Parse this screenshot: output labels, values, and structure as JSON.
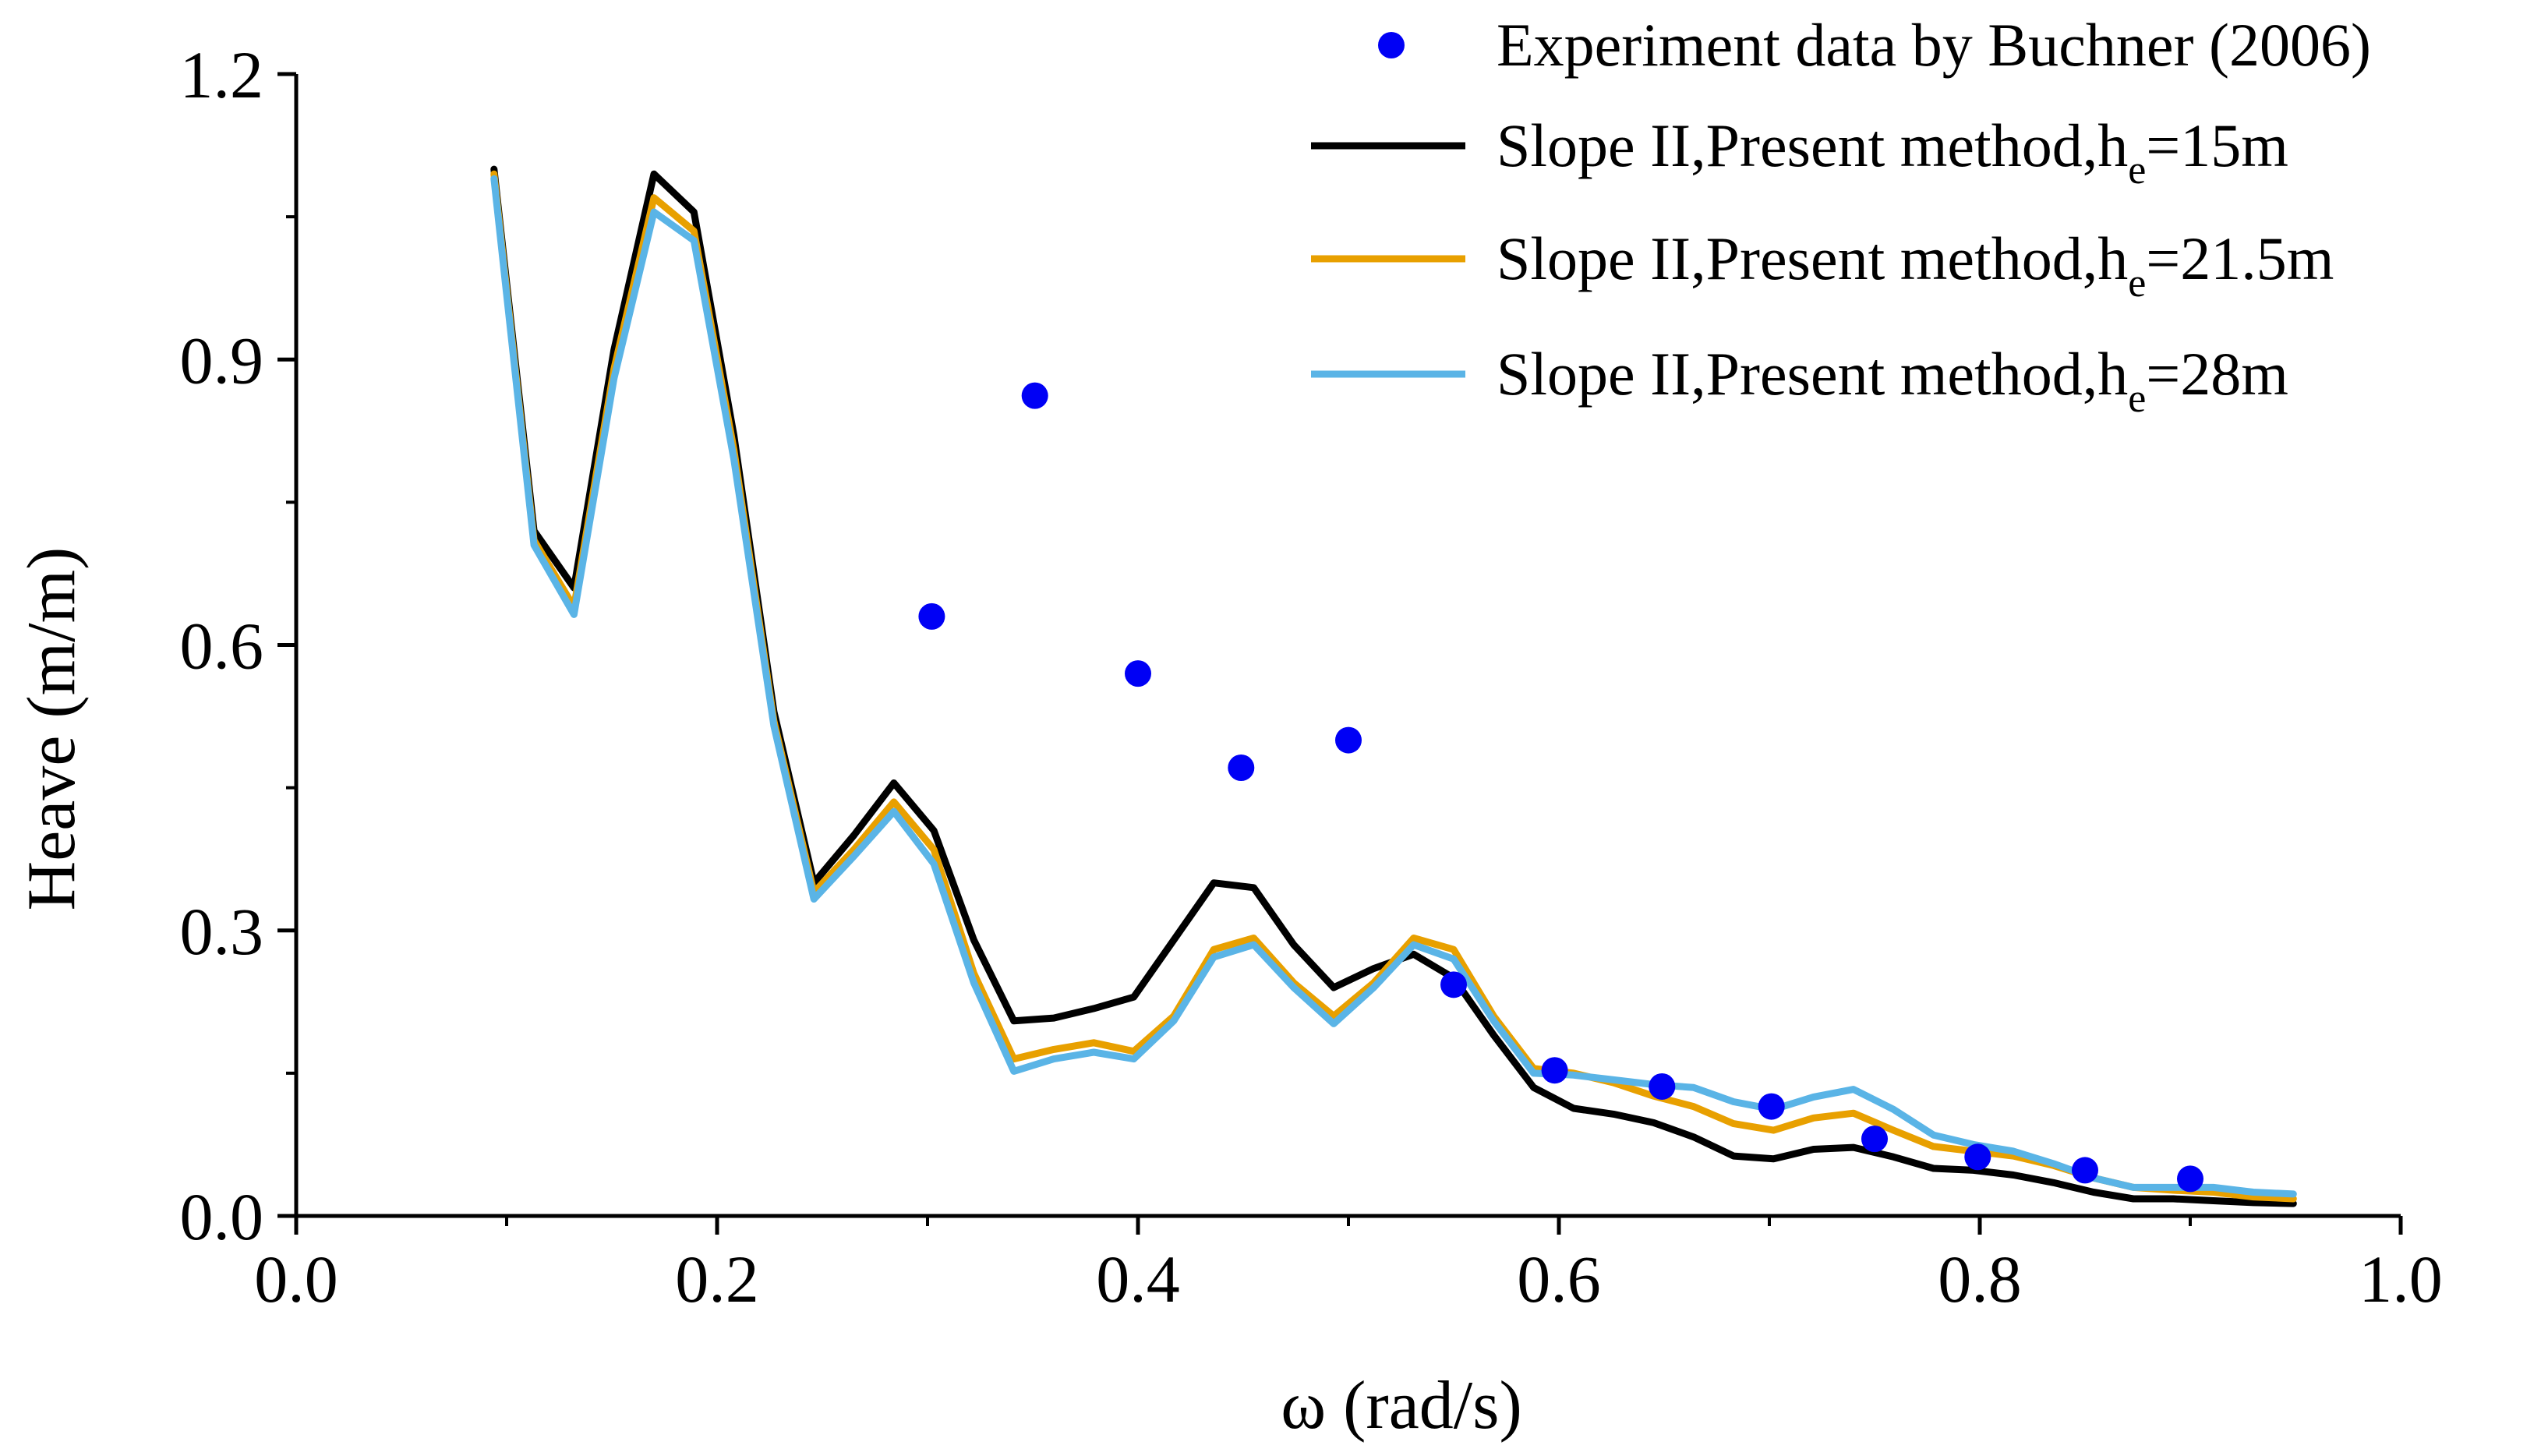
{
  "chart_data": {
    "type": "line",
    "title": "",
    "xlabel": "ω (rad/s)",
    "ylabel": "Heave (m/m)",
    "xlim": [
      0.0,
      1.0
    ],
    "ylim": [
      0.0,
      1.2
    ],
    "xticks": [
      "0.0",
      "0.2",
      "0.4",
      "0.6",
      "0.8",
      "1.0"
    ],
    "yticks": [
      "0.0",
      "0.3",
      "0.6",
      "0.9",
      "1.2"
    ],
    "grid": false,
    "legend_position": "top-right",
    "legend": [
      {
        "label": "Experiment data by Buchner (2006)",
        "marker": "circle",
        "color": "#0000f5"
      },
      {
        "label_main": "Slope II,Present method,h",
        "sub": "e",
        "label_tail": "=15m",
        "color": "#000000"
      },
      {
        "label_main": "Slope II,Present method,h",
        "sub": "e",
        "label_tail": "=21.5m",
        "color": "#e8a000"
      },
      {
        "label_main": "Slope II,Present method,h",
        "sub": "e",
        "label_tail": "=28m",
        "color": "#5ab4e6"
      }
    ],
    "scatter": {
      "name": "Experiment data by Buchner (2006)",
      "color": "#0000f5",
      "x": [
        0.302,
        0.351,
        0.4,
        0.449,
        0.5,
        0.55,
        0.598,
        0.649,
        0.701,
        0.75,
        0.799,
        0.85,
        0.9
      ],
      "y": [
        0.63,
        0.862,
        0.57,
        0.471,
        0.5,
        0.243,
        0.153,
        0.136,
        0.115,
        0.081,
        0.062,
        0.048,
        0.039
      ]
    },
    "series": [
      {
        "name": "Slope II,Present method,h_e=15m",
        "color": "#000000",
        "x": [
          0.094,
          0.113,
          0.132,
          0.151,
          0.17,
          0.189,
          0.208,
          0.227,
          0.246,
          0.265,
          0.284,
          0.303,
          0.322,
          0.341,
          0.36,
          0.379,
          0.398,
          0.417,
          0.436,
          0.455,
          0.474,
          0.493,
          0.512,
          0.531,
          0.55,
          0.569,
          0.588,
          0.607,
          0.626,
          0.645,
          0.664,
          0.683,
          0.702,
          0.721,
          0.74,
          0.759,
          0.778,
          0.797,
          0.816,
          0.835,
          0.854,
          0.873,
          0.892,
          0.911,
          0.93,
          0.949
        ],
        "y": [
          1.1,
          0.72,
          0.66,
          0.91,
          1.095,
          1.055,
          0.82,
          0.53,
          0.35,
          0.4,
          0.455,
          0.405,
          0.29,
          0.205,
          0.208,
          0.218,
          0.23,
          0.29,
          0.35,
          0.345,
          0.285,
          0.24,
          0.26,
          0.275,
          0.25,
          0.19,
          0.135,
          0.113,
          0.107,
          0.098,
          0.083,
          0.063,
          0.06,
          0.07,
          0.072,
          0.062,
          0.05,
          0.048,
          0.043,
          0.035,
          0.025,
          0.018,
          0.018,
          0.016,
          0.014,
          0.013
        ]
      },
      {
        "name": "Slope II,Present method,h_e=21.5m",
        "color": "#e8a000",
        "x": [
          0.094,
          0.113,
          0.132,
          0.151,
          0.17,
          0.189,
          0.208,
          0.227,
          0.246,
          0.265,
          0.284,
          0.303,
          0.322,
          0.341,
          0.36,
          0.379,
          0.398,
          0.417,
          0.436,
          0.455,
          0.474,
          0.493,
          0.512,
          0.531,
          0.55,
          0.569,
          0.588,
          0.607,
          0.626,
          0.645,
          0.664,
          0.683,
          0.702,
          0.721,
          0.74,
          0.759,
          0.778,
          0.797,
          0.816,
          0.835,
          0.854,
          0.873,
          0.892,
          0.911,
          0.93,
          0.949
        ],
        "y": [
          1.095,
          0.71,
          0.64,
          0.89,
          1.07,
          1.035,
          0.805,
          0.52,
          0.34,
          0.385,
          0.435,
          0.385,
          0.255,
          0.165,
          0.175,
          0.182,
          0.173,
          0.21,
          0.28,
          0.292,
          0.245,
          0.21,
          0.245,
          0.292,
          0.28,
          0.21,
          0.155,
          0.15,
          0.14,
          0.126,
          0.115,
          0.097,
          0.09,
          0.103,
          0.108,
          0.09,
          0.073,
          0.068,
          0.063,
          0.053,
          0.04,
          0.03,
          0.027,
          0.025,
          0.02,
          0.018
        ]
      },
      {
        "name": "Slope II,Present method,h_e=28m",
        "color": "#5ab4e6",
        "x": [
          0.094,
          0.113,
          0.132,
          0.151,
          0.17,
          0.189,
          0.208,
          0.227,
          0.246,
          0.265,
          0.284,
          0.303,
          0.322,
          0.341,
          0.36,
          0.379,
          0.398,
          0.417,
          0.436,
          0.455,
          0.474,
          0.493,
          0.512,
          0.531,
          0.55,
          0.569,
          0.588,
          0.607,
          0.626,
          0.645,
          0.664,
          0.683,
          0.702,
          0.721,
          0.74,
          0.759,
          0.778,
          0.797,
          0.816,
          0.835,
          0.854,
          0.873,
          0.892,
          0.911,
          0.93,
          0.949
        ],
        "y": [
          1.09,
          0.705,
          0.632,
          0.88,
          1.055,
          1.025,
          0.795,
          0.515,
          0.333,
          0.378,
          0.425,
          0.37,
          0.245,
          0.152,
          0.165,
          0.172,
          0.165,
          0.205,
          0.272,
          0.285,
          0.24,
          0.202,
          0.24,
          0.285,
          0.27,
          0.205,
          0.15,
          0.148,
          0.143,
          0.138,
          0.135,
          0.12,
          0.112,
          0.125,
          0.133,
          0.112,
          0.085,
          0.075,
          0.068,
          0.055,
          0.04,
          0.03,
          0.03,
          0.03,
          0.025,
          0.023
        ]
      }
    ]
  }
}
